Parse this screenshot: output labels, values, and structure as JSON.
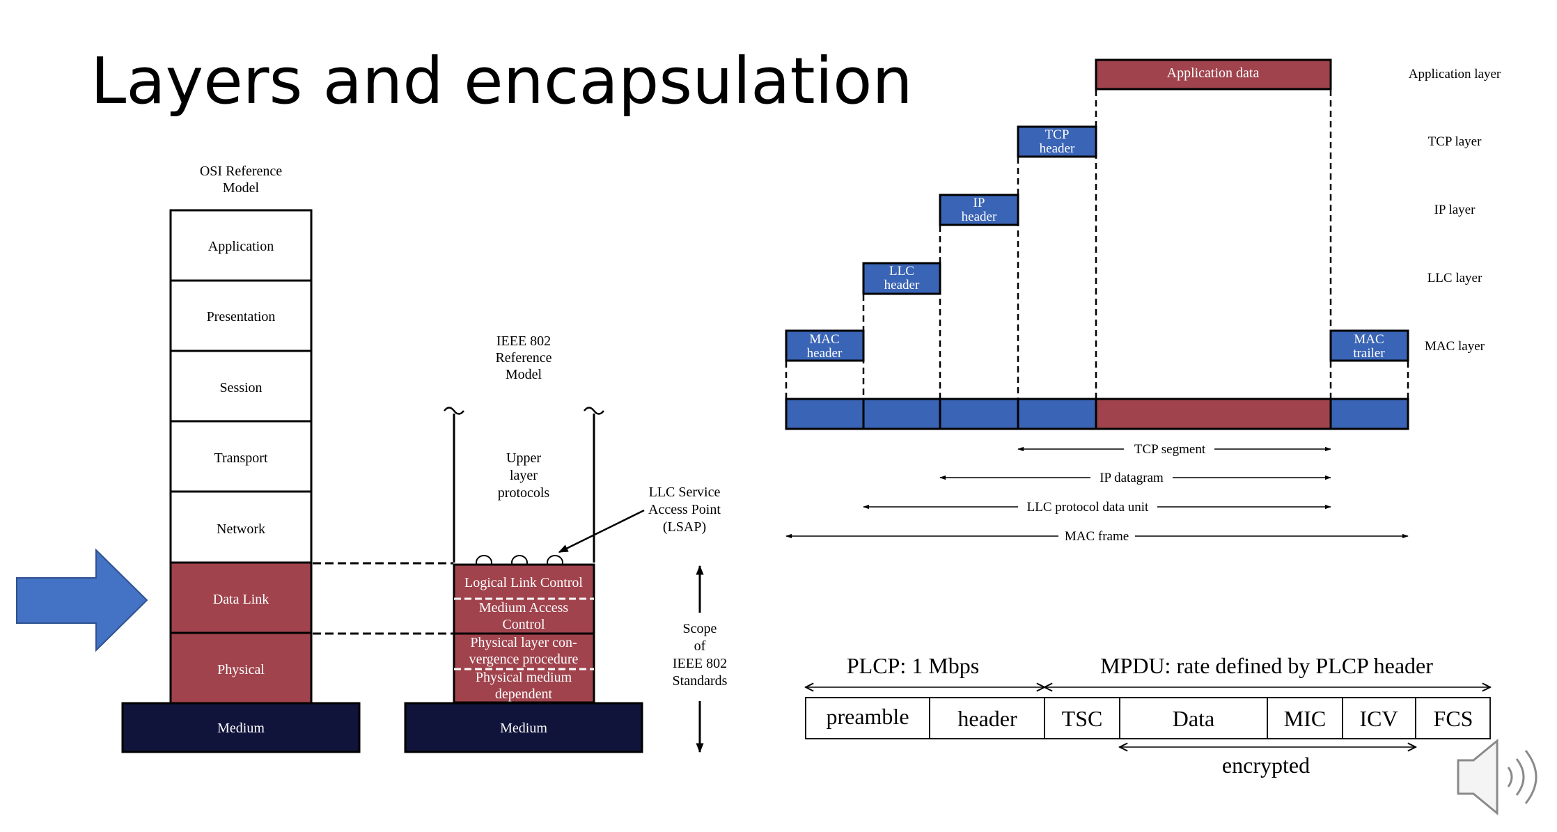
{
  "slide": {
    "title": "Layers and encapsulation"
  },
  "osi": {
    "heading_line1": "OSI Reference",
    "heading_line2": "Model",
    "layers": [
      "Application",
      "Presentation",
      "Session",
      "Transport",
      "Network",
      "Data Link",
      "Physical"
    ],
    "medium": "Medium"
  },
  "ieee": {
    "heading_line1": "IEEE 802",
    "heading_line2": "Reference",
    "heading_line3": "Model",
    "upper_line1": "Upper",
    "upper_line2": "layer",
    "upper_line3": "protocols",
    "llc": "Logical Link Control",
    "mac_line1": "Medium Access",
    "mac_line2": "Control",
    "plcp_line1": "Physical layer con-",
    "plcp_line2": "vergence procedure",
    "pmd_line1": "Physical medium",
    "pmd_line2": "dependent",
    "medium": "Medium",
    "lsap_line1": "LLC Service",
    "lsap_line2": "Access Point",
    "lsap_line3": "(LSAP)",
    "scope_line1": "Scope",
    "scope_line2": "of",
    "scope_line3": "IEEE 802",
    "scope_line4": "Standards"
  },
  "encapsulation": {
    "app_data": "Application data",
    "tcp_header_1": "TCP",
    "tcp_header_2": "header",
    "ip_header_1": "IP",
    "ip_header_2": "header",
    "llc_header_1": "LLC",
    "llc_header_2": "header",
    "mac_header_1": "MAC",
    "mac_header_2": "header",
    "mac_trailer_1": "MAC",
    "mac_trailer_2": "trailer",
    "layer_labels": [
      "Application layer",
      "TCP layer",
      "IP layer",
      "LLC layer",
      "MAC layer"
    ],
    "spans": [
      "TCP segment",
      "IP datagram",
      "LLC protocol data unit",
      "MAC frame"
    ]
  },
  "frame": {
    "plcp_label": "PLCP: 1 Mbps",
    "mpdu_label": "MPDU: rate defined by PLCP header",
    "fields": [
      "preamble",
      "header",
      "TSC",
      "Data",
      "MIC",
      "ICV",
      "FCS"
    ],
    "encrypted_label": "encrypted"
  },
  "colors": {
    "red": "#A0434D",
    "blue": "#3A64B5",
    "navy": "#10133A",
    "arrow_blue": "#4472C4"
  },
  "icons": {
    "pointer_arrow": "right-arrow-icon",
    "audio": "speaker-icon"
  }
}
